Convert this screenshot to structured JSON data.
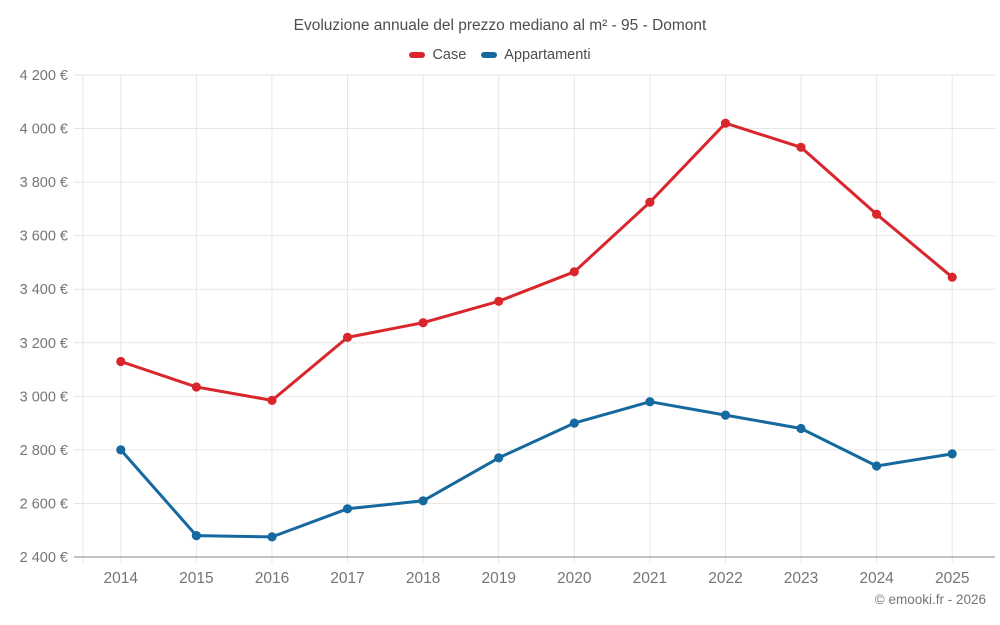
{
  "title": "Evoluzione annuale del prezzo mediano al m² - 95 - Domont",
  "footer": "© emooki.fr - 2026",
  "chart_data": {
    "type": "line",
    "title": "Evoluzione annuale del prezzo mediano al m² - 95 - Domont",
    "categories": [
      "2014",
      "2015",
      "2016",
      "2017",
      "2018",
      "2019",
      "2020",
      "2021",
      "2022",
      "2023",
      "2024",
      "2025"
    ],
    "series": [
      {
        "name": "Case",
        "color": "#d8262c",
        "values": [
          3130,
          3035,
          2985,
          3220,
          3275,
          3355,
          3465,
          3725,
          4020,
          3930,
          3680,
          3445
        ]
      },
      {
        "name": "Appartamenti",
        "color": "#16699e",
        "values": [
          2800,
          2480,
          2475,
          2580,
          2610,
          2770,
          2900,
          2980,
          2930,
          2880,
          2740,
          2785
        ]
      }
    ],
    "xlabel": "",
    "ylabel": "",
    "ylim": [
      2400,
      4200
    ],
    "ytick_step": 200,
    "ytick_labels": [
      "2 400 €",
      "2 600 €",
      "2 800 €",
      "3 000 €",
      "3 200 €",
      "3 400 €",
      "3 600 €",
      "3 800 €",
      "4 000 €",
      "4 200 €"
    ],
    "grid": true,
    "legend_position": "top",
    "marker": "circle",
    "colors": {
      "grid": "#e6e6e6",
      "axis": "#9e9e9e",
      "tick_label": "#757575"
    }
  }
}
